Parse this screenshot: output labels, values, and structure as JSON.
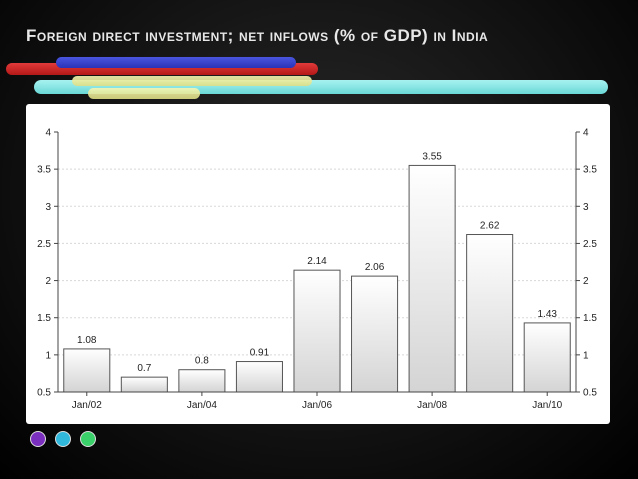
{
  "slide": {
    "title": "Foreign direct investment; net inflows (% of GDP) in India"
  },
  "colors": {
    "background": "#000000",
    "stripe_blue": "#3a44cc",
    "stripe_red": "#cc2222",
    "stripe_cyan": "#8ce6e4",
    "stripe_yellow": "#eaea9c",
    "dot_purple": "#7b2fbf",
    "dot_cyan": "#31b9dd",
    "dot_green": "#3ad06a"
  },
  "chart_data": {
    "type": "bar",
    "title": "",
    "xlabel": "",
    "ylabel": "",
    "categories": [
      "2002",
      "2003",
      "2004",
      "2005",
      "2006",
      "2007",
      "2008",
      "2009",
      "2010"
    ],
    "values": [
      1.08,
      0.7,
      0.8,
      0.91,
      2.14,
      2.06,
      3.55,
      2.62,
      1.43
    ],
    "data_labels": [
      "1.08",
      "0.7",
      "0.8",
      "0.91",
      "2.14",
      "2.06",
      "3.55",
      "2.62",
      "1.43"
    ],
    "x_tick_labels": [
      "Jan/02",
      "Jan/04",
      "Jan/06",
      "Jan/08",
      "Jan/10"
    ],
    "x_tick_positions": [
      0,
      2,
      4,
      6,
      8
    ],
    "y_ticks": [
      "0.5",
      "1",
      "1.5",
      "2",
      "2.5",
      "3",
      "3.5",
      "4"
    ],
    "ylim": [
      0.5,
      4
    ],
    "y_axis_both_sides": true,
    "grid": true
  }
}
